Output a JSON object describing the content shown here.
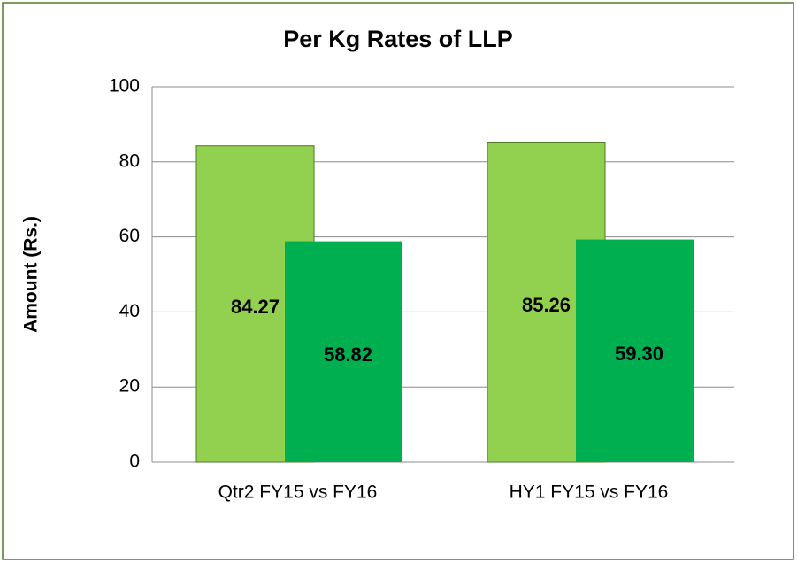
{
  "chart_data": {
    "type": "bar",
    "title": "Per Kg Rates of LLP",
    "y_label": "Amount (Rs.)",
    "categories": [
      "Qtr2 FY15 vs FY16",
      "HY1 FY15 vs FY16"
    ],
    "series": [
      {
        "color": "#92d050",
        "values": [
          84.27,
          85.26
        ],
        "value_labels": [
          "84.27",
          "85.26"
        ]
      },
      {
        "color": "#00b050",
        "values": [
          58.82,
          59.3
        ],
        "value_labels": [
          "58.82",
          "59.30"
        ]
      }
    ],
    "ylim": [
      0,
      100
    ],
    "yticks": [
      0,
      20,
      40,
      60,
      80,
      100
    ],
    "grid": true
  }
}
